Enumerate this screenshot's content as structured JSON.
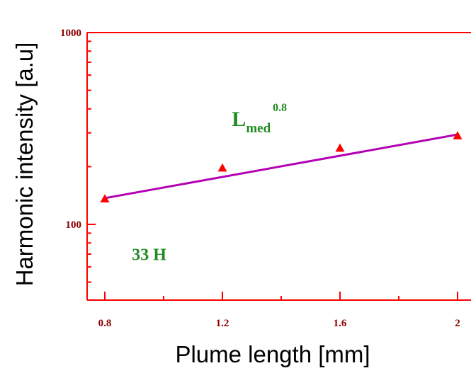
{
  "chart_data": {
    "type": "scatter",
    "title": "",
    "xlabel": "Plume length [mm]",
    "ylabel": "Harmonic intensity [a.u]",
    "xlim": [
      0.75,
      2.05
    ],
    "ylim": [
      40,
      1000
    ],
    "y_scale": "log",
    "x_ticks": [
      "0.8",
      "1.2",
      "1.6",
      "2"
    ],
    "x_tick_values": [
      0.8,
      1.2,
      1.6,
      2.0
    ],
    "y_ticks": [
      "100",
      "1000"
    ],
    "y_tick_values": [
      100,
      1000
    ],
    "grid": false,
    "series": [
      {
        "kind": "scatter",
        "marker": "triangle",
        "color": "#ff0000",
        "x": [
          0.8,
          1.2,
          1.6,
          2.0
        ],
        "y": [
          136,
          197,
          250,
          290
        ]
      },
      {
        "kind": "line",
        "color": "#b300b3",
        "x": [
          0.8,
          2.0
        ],
        "y": [
          137,
          294
        ]
      }
    ],
    "annotations": [
      {
        "text": "L",
        "sub": "med",
        "sup": "0.8",
        "x": 1.22,
        "y": 320
      },
      {
        "text": "33 H",
        "x": 0.88,
        "y": 68
      }
    ],
    "axis_color": "#ff0000",
    "tick_label_color": "#8b0000",
    "annotation_color": "#228b22"
  }
}
